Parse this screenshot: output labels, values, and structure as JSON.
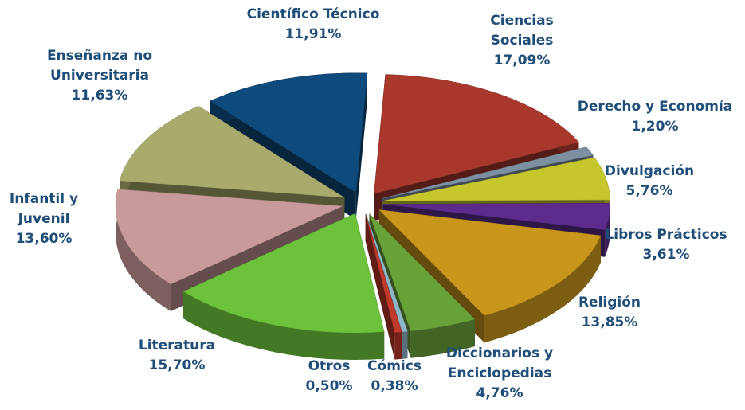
{
  "chart_data": {
    "type": "pie",
    "categories": [
      "Científico Técnico",
      "Ciencias Sociales",
      "Derecho y Economía",
      "Divulgación",
      "Libros Prácticos",
      "Religión",
      "Diccionarios y Enciclopedias",
      "Cómics",
      "Otros",
      "Literatura",
      "Infantil y Juvenil",
      "Enseñanza no Universitaria"
    ],
    "values": [
      11.91,
      17.09,
      1.2,
      5.76,
      3.61,
      13.85,
      4.76,
      0.38,
      0.5,
      15.7,
      13.6,
      11.63
    ],
    "value_labels": [
      "11,91%",
      "17,09%",
      "1,20%",
      "5,76%",
      "3,61%",
      "13,85%",
      "4,76%",
      "0,38%",
      "0,50%",
      "15,70%",
      "13,60%",
      "11,63%"
    ],
    "colors": [
      "#0f4a7c",
      "#a8382c",
      "#7d90a2",
      "#c5c72c",
      "#5b2c8c",
      "#c9961c",
      "#6aa23a",
      "#8fb7c7",
      "#c0392b",
      "#6cc23a",
      "#c99a9a",
      "#a9ab6c"
    ]
  }
}
